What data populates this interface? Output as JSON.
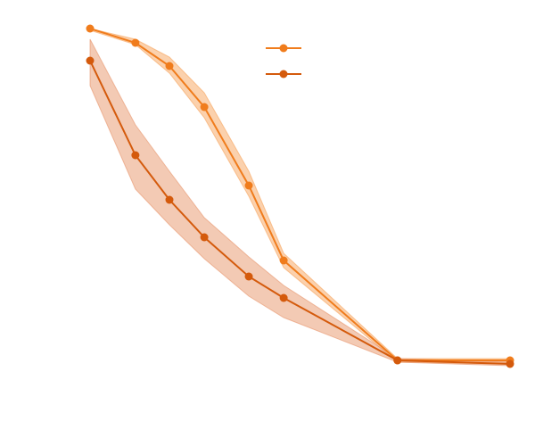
{
  "chart_data": {
    "type": "line",
    "x": [
      0,
      0.108,
      0.189,
      0.272,
      0.378,
      0.461,
      0.732,
      1.0
    ],
    "xlim": [
      0,
      1
    ],
    "ylim": [
      0,
      1
    ],
    "legend": "upper center",
    "series": [
      {
        "color": "#f07c1c",
        "band_color": "#f7a35c",
        "values": [
          0.97,
          0.93,
          0.865,
          0.75,
          0.53,
          0.32,
          0.04,
          0.04
        ],
        "upper": [
          0.97,
          0.94,
          0.89,
          0.79,
          0.57,
          0.34,
          0.045,
          0.045
        ],
        "lower": [
          0.965,
          0.925,
          0.845,
          0.72,
          0.5,
          0.3,
          0.035,
          0.03
        ]
      },
      {
        "color": "#d45a0c",
        "band_color": "#e8956a",
        "values": [
          0.88,
          0.615,
          0.49,
          0.385,
          0.275,
          0.215,
          0.04,
          0.03
        ],
        "upper": [
          0.94,
          0.7,
          0.57,
          0.44,
          0.33,
          0.25,
          0.045,
          0.035
        ],
        "lower": [
          0.81,
          0.52,
          0.42,
          0.325,
          0.22,
          0.16,
          0.035,
          0.025
        ]
      }
    ]
  }
}
